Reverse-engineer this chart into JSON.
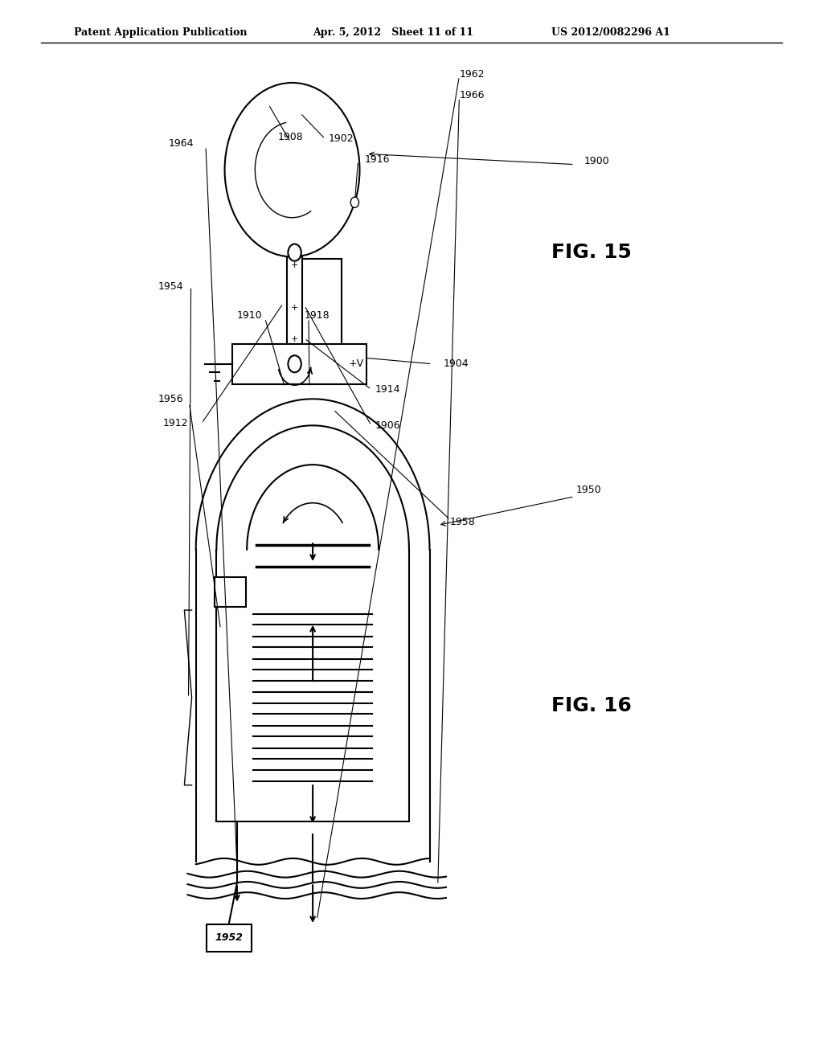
{
  "bg": "#ffffff",
  "header_left": "Patent Application Publication",
  "header_mid": "Apr. 5, 2012   Sheet 11 of 11",
  "header_right": "US 2012/0082296 A1",
  "fig15_label": "FIG. 15",
  "fig16_label": "FIG. 16",
  "lw": 1.5
}
